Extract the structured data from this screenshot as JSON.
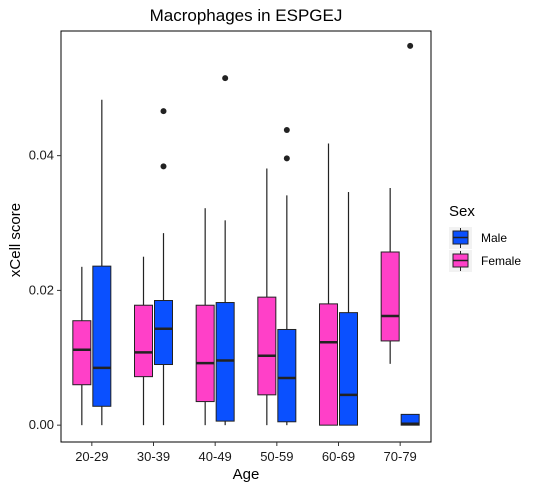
{
  "chart_data": {
    "type": "boxplot",
    "title": "Macrophages in ESPGEJ",
    "xlabel": "Age",
    "ylabel": "xCell score",
    "ylim": [
      -0.0025,
      0.0585
    ],
    "yticks": [
      0.0,
      0.02,
      0.04
    ],
    "ytick_labels": [
      "0.00",
      "0.02",
      "0.04"
    ],
    "grid": false,
    "legend_position": "right",
    "legend_title": "Sex",
    "categories": [
      "20-29",
      "30-39",
      "40-49",
      "50-59",
      "60-69",
      "70-79"
    ],
    "series": [
      {
        "name": "Female",
        "color": "#ff40c8",
        "boxes": [
          {
            "min": 0.0,
            "q1": 0.006,
            "median": 0.0112,
            "q3": 0.0155,
            "max": 0.0235,
            "outliers": []
          },
          {
            "min": 0.0,
            "q1": 0.0072,
            "median": 0.0108,
            "q3": 0.0178,
            "max": 0.025,
            "outliers": []
          },
          {
            "min": 0.0,
            "q1": 0.0035,
            "median": 0.0092,
            "q3": 0.0178,
            "max": 0.0322,
            "outliers": []
          },
          {
            "min": 0.0,
            "q1": 0.0045,
            "median": 0.0103,
            "q3": 0.019,
            "max": 0.0381,
            "outliers": []
          },
          {
            "min": 0.0,
            "q1": 0.0,
            "median": 0.0123,
            "q3": 0.018,
            "max": 0.0418,
            "outliers": []
          },
          {
            "min": 0.0091,
            "q1": 0.0125,
            "median": 0.0162,
            "q3": 0.0257,
            "max": 0.0352,
            "outliers": []
          }
        ]
      },
      {
        "name": "Male",
        "color": "#0a50ff",
        "boxes": [
          {
            "min": 0.0,
            "q1": 0.0028,
            "median": 0.0085,
            "q3": 0.0236,
            "max": 0.0483,
            "outliers": []
          },
          {
            "min": 0.0,
            "q1": 0.009,
            "median": 0.0143,
            "q3": 0.0185,
            "max": 0.0285,
            "outliers": [
              0.0384,
              0.0466
            ]
          },
          {
            "min": 0.0,
            "q1": 0.0006,
            "median": 0.0096,
            "q3": 0.0182,
            "max": 0.0304,
            "outliers": [
              0.0515
            ]
          },
          {
            "min": 0.0,
            "q1": 0.0005,
            "median": 0.007,
            "q3": 0.0142,
            "max": 0.0341,
            "outliers": [
              0.0396,
              0.0438
            ]
          },
          {
            "min": 0.0,
            "q1": 0.0,
            "median": 0.0045,
            "q3": 0.0167,
            "max": 0.0346,
            "outliers": []
          },
          {
            "min": 0.0,
            "q1": 0.0,
            "median": 0.0002,
            "q3": 0.0016,
            "max": 0.0016,
            "outliers": [
              0.0563
            ]
          }
        ]
      }
    ],
    "legend": [
      {
        "label": "Male",
        "color": "#0a50ff"
      },
      {
        "label": "Female",
        "color": "#ff40c8"
      }
    ]
  }
}
